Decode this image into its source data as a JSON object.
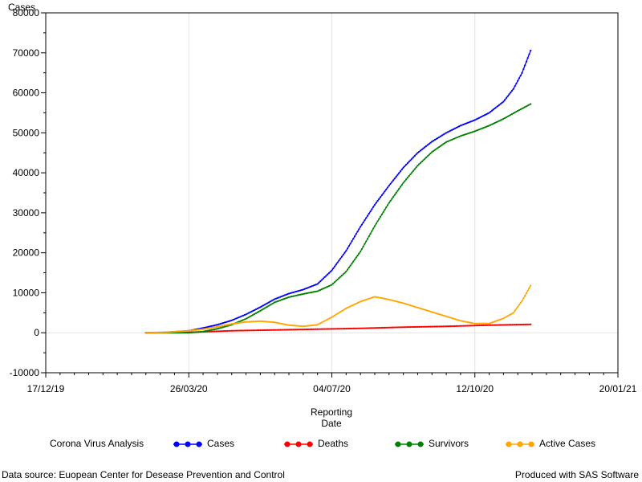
{
  "chart_data": {
    "type": "line",
    "title": "",
    "ylabel": "Cases",
    "xlabel": [
      "Reporting",
      "Date"
    ],
    "xlim": [
      "2019-12-17",
      "2021-01-20"
    ],
    "ylim": [
      -10000,
      80000
    ],
    "x_ticks": [
      "17/12/19",
      "26/03/20",
      "04/07/20",
      "12/10/20",
      "20/01/21"
    ],
    "y_ticks": [
      -10000,
      0,
      10000,
      20000,
      30000,
      40000,
      50000,
      60000,
      70000,
      80000
    ],
    "x_gridlines": [
      "26/03/20",
      "04/07/20",
      "12/10/20"
    ],
    "y_gridlines": [
      0
    ],
    "legend_title": "Corona Virus Analysis",
    "legend_position": "bottom",
    "series": [
      {
        "name": "Cases",
        "color": "#0000ff",
        "points": [
          [
            "2020-02-25",
            0
          ],
          [
            "2020-03-10",
            100
          ],
          [
            "2020-03-26",
            500
          ],
          [
            "2020-04-05",
            1200
          ],
          [
            "2020-04-15",
            2000
          ],
          [
            "2020-04-25",
            3100
          ],
          [
            "2020-05-05",
            4600
          ],
          [
            "2020-05-15",
            6400
          ],
          [
            "2020-05-25",
            8400
          ],
          [
            "2020-06-04",
            9800
          ],
          [
            "2020-06-14",
            10800
          ],
          [
            "2020-06-24",
            12200
          ],
          [
            "2020-07-04",
            15600
          ],
          [
            "2020-07-14",
            20500
          ],
          [
            "2020-07-24",
            26500
          ],
          [
            "2020-08-03",
            32000
          ],
          [
            "2020-08-13",
            36800
          ],
          [
            "2020-08-23",
            41300
          ],
          [
            "2020-09-02",
            45000
          ],
          [
            "2020-09-12",
            47800
          ],
          [
            "2020-09-22",
            50000
          ],
          [
            "2020-10-02",
            51800
          ],
          [
            "2020-10-12",
            53200
          ],
          [
            "2020-10-22",
            55000
          ],
          [
            "2020-11-01",
            57800
          ],
          [
            "2020-11-08",
            61000
          ],
          [
            "2020-11-14",
            65000
          ],
          [
            "2020-11-20",
            70600
          ]
        ]
      },
      {
        "name": "Deaths",
        "color": "#ff0000",
        "points": [
          [
            "2020-02-25",
            0
          ],
          [
            "2020-03-26",
            100
          ],
          [
            "2020-04-25",
            500
          ],
          [
            "2020-05-25",
            700
          ],
          [
            "2020-06-24",
            900
          ],
          [
            "2020-07-24",
            1100
          ],
          [
            "2020-08-23",
            1400
          ],
          [
            "2020-09-22",
            1600
          ],
          [
            "2020-10-22",
            1900
          ],
          [
            "2020-11-20",
            2100
          ]
        ]
      },
      {
        "name": "Survivors",
        "color": "#008000",
        "points": [
          [
            "2020-02-25",
            0
          ],
          [
            "2020-03-26",
            0
          ],
          [
            "2020-04-05",
            300
          ],
          [
            "2020-04-15",
            1000
          ],
          [
            "2020-04-25",
            2000
          ],
          [
            "2020-05-05",
            3500
          ],
          [
            "2020-05-15",
            5500
          ],
          [
            "2020-05-25",
            7600
          ],
          [
            "2020-06-04",
            8900
          ],
          [
            "2020-06-14",
            9700
          ],
          [
            "2020-06-24",
            10400
          ],
          [
            "2020-07-04",
            12000
          ],
          [
            "2020-07-14",
            15300
          ],
          [
            "2020-07-24",
            20300
          ],
          [
            "2020-08-03",
            26700
          ],
          [
            "2020-08-13",
            32500
          ],
          [
            "2020-08-23",
            37500
          ],
          [
            "2020-09-02",
            41800
          ],
          [
            "2020-09-12",
            45200
          ],
          [
            "2020-09-22",
            47700
          ],
          [
            "2020-10-02",
            49200
          ],
          [
            "2020-10-12",
            50400
          ],
          [
            "2020-10-22",
            51800
          ],
          [
            "2020-11-01",
            53500
          ],
          [
            "2020-11-10",
            55300
          ],
          [
            "2020-11-20",
            57200
          ]
        ]
      },
      {
        "name": "Active Cases",
        "color": "#ffa500",
        "points": [
          [
            "2020-02-25",
            0
          ],
          [
            "2020-03-10",
            100
          ],
          [
            "2020-03-26",
            500
          ],
          [
            "2020-04-05",
            900
          ],
          [
            "2020-04-15",
            1500
          ],
          [
            "2020-04-25",
            2200
          ],
          [
            "2020-05-05",
            2700
          ],
          [
            "2020-05-15",
            2900
          ],
          [
            "2020-05-25",
            2600
          ],
          [
            "2020-06-04",
            1900
          ],
          [
            "2020-06-14",
            1600
          ],
          [
            "2020-06-24",
            2000
          ],
          [
            "2020-07-04",
            3900
          ],
          [
            "2020-07-14",
            6100
          ],
          [
            "2020-07-24",
            7800
          ],
          [
            "2020-08-03",
            9000
          ],
          [
            "2020-08-13",
            8300
          ],
          [
            "2020-08-23",
            7400
          ],
          [
            "2020-09-02",
            6300
          ],
          [
            "2020-09-12",
            5200
          ],
          [
            "2020-09-22",
            4100
          ],
          [
            "2020-10-02",
            3000
          ],
          [
            "2020-10-12",
            2300
          ],
          [
            "2020-10-22",
            2300
          ],
          [
            "2020-11-01",
            3600
          ],
          [
            "2020-11-08",
            5000
          ],
          [
            "2020-11-14",
            8000
          ],
          [
            "2020-11-20",
            11800
          ]
        ]
      }
    ]
  },
  "footnote_left": "Data source: Euopean Center for Desease Prevention and Control",
  "footnote_right": "Produced with SAS Software"
}
